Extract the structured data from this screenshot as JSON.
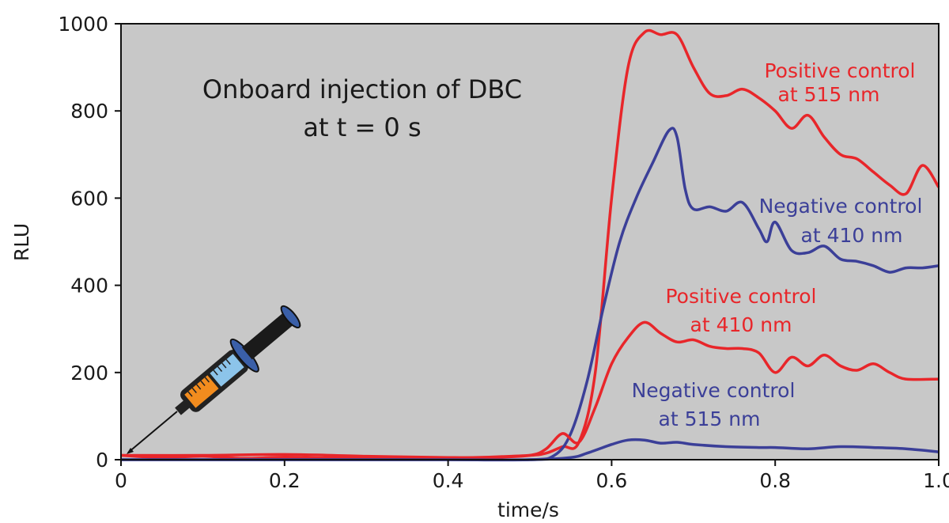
{
  "chart_data": {
    "type": "line",
    "xlabel": "time/s",
    "ylabel": "RLU",
    "xlim": [
      0,
      1.0
    ],
    "ylim": [
      0,
      1000
    ],
    "xticks": [
      0,
      0.2,
      0.4,
      0.6,
      0.8,
      1.0
    ],
    "xtick_labels": [
      "0",
      "0.2",
      "0.4",
      "0.6",
      "0.8",
      "1.0"
    ],
    "yticks": [
      0,
      200,
      400,
      600,
      800,
      1000
    ],
    "ytick_labels": [
      "0",
      "200",
      "400",
      "600",
      "800",
      "1000"
    ],
    "grid": false,
    "background": "#c8c8c8",
    "colors": {
      "positive": "#e8262a",
      "negative": "#3b3f98"
    },
    "annotations": {
      "main_line1": "Onboard injection of DBC",
      "main_line2": "at t = 0 s",
      "pos515_line1": "Positive control",
      "pos515_line2": "at 515 nm",
      "neg410_line1": "Negative control",
      "neg410_line2": "at 410 nm",
      "pos410_line1": "Positive control",
      "pos410_line2": "at 410 nm",
      "neg515_line1": "Negative control",
      "neg515_line2": "at 515 nm"
    },
    "series": [
      {
        "name": "Positive control at 515 nm",
        "color": "#e8262a",
        "points": [
          [
            0,
            10
          ],
          [
            0.05,
            5
          ],
          [
            0.1,
            8
          ],
          [
            0.15,
            3
          ],
          [
            0.2,
            6
          ],
          [
            0.25,
            4
          ],
          [
            0.3,
            5
          ],
          [
            0.35,
            3
          ],
          [
            0.4,
            4
          ],
          [
            0.45,
            6
          ],
          [
            0.5,
            10
          ],
          [
            0.52,
            15
          ],
          [
            0.54,
            30
          ],
          [
            0.56,
            40
          ],
          [
            0.58,
            200
          ],
          [
            0.6,
            600
          ],
          [
            0.62,
            900
          ],
          [
            0.64,
            980
          ],
          [
            0.66,
            975
          ],
          [
            0.68,
            975
          ],
          [
            0.7,
            900
          ],
          [
            0.72,
            840
          ],
          [
            0.74,
            835
          ],
          [
            0.76,
            850
          ],
          [
            0.78,
            830
          ],
          [
            0.8,
            800
          ],
          [
            0.82,
            760
          ],
          [
            0.84,
            790
          ],
          [
            0.86,
            740
          ],
          [
            0.88,
            700
          ],
          [
            0.9,
            690
          ],
          [
            0.92,
            660
          ],
          [
            0.94,
            630
          ],
          [
            0.96,
            610
          ],
          [
            0.98,
            675
          ],
          [
            1.0,
            625
          ]
        ]
      },
      {
        "name": "Negative control at 410 nm",
        "color": "#3b3f98",
        "points": [
          [
            0,
            0
          ],
          [
            0.1,
            0
          ],
          [
            0.2,
            0
          ],
          [
            0.3,
            0
          ],
          [
            0.4,
            0
          ],
          [
            0.5,
            0
          ],
          [
            0.53,
            10
          ],
          [
            0.55,
            60
          ],
          [
            0.57,
            180
          ],
          [
            0.59,
            350
          ],
          [
            0.61,
            500
          ],
          [
            0.63,
            600
          ],
          [
            0.65,
            680
          ],
          [
            0.67,
            755
          ],
          [
            0.68,
            740
          ],
          [
            0.69,
            620
          ],
          [
            0.7,
            575
          ],
          [
            0.72,
            580
          ],
          [
            0.74,
            570
          ],
          [
            0.76,
            590
          ],
          [
            0.78,
            530
          ],
          [
            0.79,
            500
          ],
          [
            0.8,
            545
          ],
          [
            0.82,
            480
          ],
          [
            0.84,
            475
          ],
          [
            0.86,
            490
          ],
          [
            0.88,
            460
          ],
          [
            0.9,
            455
          ],
          [
            0.92,
            445
          ],
          [
            0.94,
            430
          ],
          [
            0.96,
            440
          ],
          [
            0.98,
            440
          ],
          [
            1.0,
            445
          ]
        ]
      },
      {
        "name": "Positive control at 410 nm",
        "color": "#e8262a",
        "points": [
          [
            0,
            10
          ],
          [
            0.1,
            10
          ],
          [
            0.2,
            12
          ],
          [
            0.3,
            8
          ],
          [
            0.4,
            5
          ],
          [
            0.45,
            5
          ],
          [
            0.5,
            10
          ],
          [
            0.52,
            25
          ],
          [
            0.54,
            60
          ],
          [
            0.56,
            40
          ],
          [
            0.58,
            120
          ],
          [
            0.6,
            220
          ],
          [
            0.62,
            280
          ],
          [
            0.64,
            315
          ],
          [
            0.66,
            290
          ],
          [
            0.68,
            270
          ],
          [
            0.7,
            275
          ],
          [
            0.72,
            260
          ],
          [
            0.74,
            255
          ],
          [
            0.76,
            255
          ],
          [
            0.78,
            245
          ],
          [
            0.8,
            200
          ],
          [
            0.82,
            235
          ],
          [
            0.84,
            215
          ],
          [
            0.86,
            240
          ],
          [
            0.88,
            215
          ],
          [
            0.9,
            205
          ],
          [
            0.92,
            220
          ],
          [
            0.94,
            200
          ],
          [
            0.96,
            185
          ],
          [
            1.0,
            185
          ]
        ]
      },
      {
        "name": "Negative control at 515 nm",
        "color": "#3b3f98",
        "points": [
          [
            0,
            0
          ],
          [
            0.1,
            0
          ],
          [
            0.2,
            0
          ],
          [
            0.3,
            0
          ],
          [
            0.4,
            0
          ],
          [
            0.5,
            0
          ],
          [
            0.55,
            5
          ],
          [
            0.57,
            15
          ],
          [
            0.6,
            35
          ],
          [
            0.62,
            45
          ],
          [
            0.64,
            45
          ],
          [
            0.66,
            38
          ],
          [
            0.68,
            40
          ],
          [
            0.7,
            35
          ],
          [
            0.74,
            30
          ],
          [
            0.78,
            28
          ],
          [
            0.8,
            28
          ],
          [
            0.84,
            25
          ],
          [
            0.88,
            30
          ],
          [
            0.92,
            28
          ],
          [
            0.96,
            25
          ],
          [
            1.0,
            18
          ]
        ]
      }
    ]
  }
}
